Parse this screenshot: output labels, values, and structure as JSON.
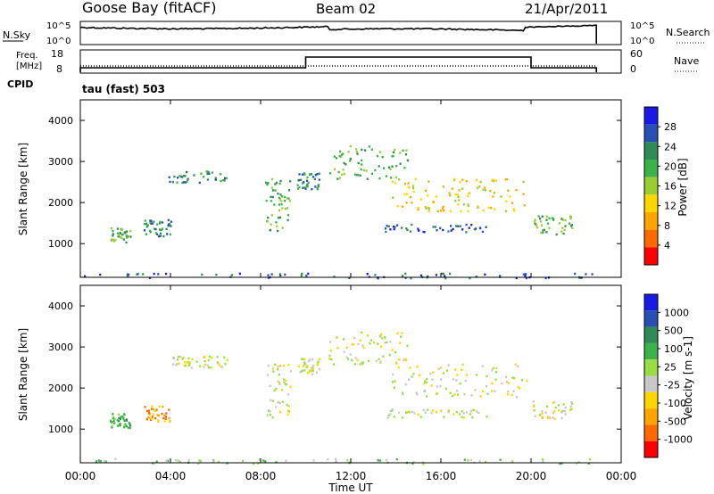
{
  "header": {
    "station": "Goose Bay (fitACF)",
    "beam": "Beam 02",
    "date": "21/Apr/2011"
  },
  "noise_panel": {
    "left_label": "N.Sky",
    "right_label": "N.Search",
    "left_ticks": [
      "10^5",
      "10^0"
    ],
    "right_ticks": [
      "10^5",
      "10^0"
    ]
  },
  "freq_panel": {
    "left_label_line1": "Freq.",
    "left_label_line2": "[MHz]",
    "right_label": "Nave",
    "left_ticks": [
      "18",
      "8"
    ],
    "right_ticks": [
      "60",
      "0"
    ],
    "cpid_label": "CPID",
    "cpid_text": "tau (fast) 503"
  },
  "colors": {
    "power": [
      "#1a1ae6",
      "#2850b4",
      "#2e8b57",
      "#3cb34a",
      "#9acd32",
      "#ffd700",
      "#ffa500",
      "#ff6a00",
      "#ff0000"
    ],
    "velocity": [
      "#1a1ae6",
      "#2850b4",
      "#2e8b57",
      "#3cb34a",
      "#99dd44",
      "#c8c8c8",
      "#ffd700",
      "#ffa500",
      "#ff6a00",
      "#ff0000"
    ]
  },
  "chart_data": [
    {
      "type": "heatmap",
      "name": "power",
      "ylabel": "Slant Range [km]",
      "yticks": [
        "4000",
        "3000",
        "2000",
        "1000"
      ],
      "colorbar_label": "Power [dB]",
      "colorbar_ticks": [
        "28",
        "24",
        "20",
        "16",
        "12",
        "8",
        "4"
      ],
      "xlim": [
        0,
        24
      ],
      "ylim": [
        180,
        4500
      ],
      "regions": [
        {
          "t0": 1.3,
          "t1": 2.2,
          "r0": 1050,
          "r1": 1400,
          "level": 3
        },
        {
          "t0": 2.8,
          "t1": 4.0,
          "r0": 1200,
          "r1": 1600,
          "level": 2
        },
        {
          "t0": 3.9,
          "t1": 6.5,
          "r0": 2500,
          "r1": 2800,
          "level": 2
        },
        {
          "t0": 8.2,
          "t1": 9.3,
          "r0": 1300,
          "r1": 2600,
          "level": 3
        },
        {
          "t0": 9.6,
          "t1": 10.6,
          "r0": 2350,
          "r1": 2750,
          "level": 2
        },
        {
          "t0": 11.0,
          "t1": 14.5,
          "r0": 2600,
          "r1": 3400,
          "level": 3
        },
        {
          "t0": 13.8,
          "t1": 20.0,
          "r0": 1800,
          "r1": 2600,
          "level": 5
        },
        {
          "t0": 13.5,
          "t1": 18.0,
          "r0": 1300,
          "r1": 1500,
          "level": 1
        },
        {
          "t0": 20.0,
          "t1": 21.8,
          "r0": 1250,
          "r1": 1700,
          "level": 3
        },
        {
          "t0": 0.0,
          "t1": 22.9,
          "r0": 180,
          "r1": 300,
          "level": 1
        }
      ]
    },
    {
      "type": "heatmap",
      "name": "velocity",
      "xlabel": "Time UT",
      "ylabel": "Slant Range [km]",
      "xticks": [
        "00:00",
        "04:00",
        "08:00",
        "12:00",
        "16:00",
        "20:00",
        "00:00"
      ],
      "yticks": [
        "4000",
        "3000",
        "2000",
        "1000"
      ],
      "colorbar_label": "Velocity [m s-1]",
      "colorbar_ticks": [
        "1000",
        "500",
        "100",
        "25",
        "-25",
        "-100",
        "-500",
        "-1000"
      ],
      "xlim": [
        0,
        24
      ],
      "ylim": [
        180,
        4500
      ],
      "regions": [
        {
          "t0": 1.3,
          "t1": 2.2,
          "r0": 1050,
          "r1": 1400,
          "level": 3
        },
        {
          "t0": 2.8,
          "t1": 4.0,
          "r0": 1200,
          "r1": 1600,
          "level": 7
        },
        {
          "t0": 3.9,
          "t1": 6.5,
          "r0": 2500,
          "r1": 2800,
          "level": 5
        },
        {
          "t0": 8.2,
          "t1": 9.3,
          "r0": 1300,
          "r1": 2600,
          "level": 5
        },
        {
          "t0": 9.6,
          "t1": 10.6,
          "r0": 2350,
          "r1": 2750,
          "level": 5
        },
        {
          "t0": 11.0,
          "t1": 14.5,
          "r0": 2600,
          "r1": 3400,
          "level": 5
        },
        {
          "t0": 13.8,
          "t1": 20.0,
          "r0": 1800,
          "r1": 2600,
          "level": 5
        },
        {
          "t0": 13.5,
          "t1": 18.0,
          "r0": 1300,
          "r1": 1500,
          "level": 5
        },
        {
          "t0": 20.0,
          "t1": 21.8,
          "r0": 1250,
          "r1": 1700,
          "level": 5
        },
        {
          "t0": 0.0,
          "t1": 22.9,
          "r0": 180,
          "r1": 300,
          "level": 4
        }
      ]
    }
  ]
}
